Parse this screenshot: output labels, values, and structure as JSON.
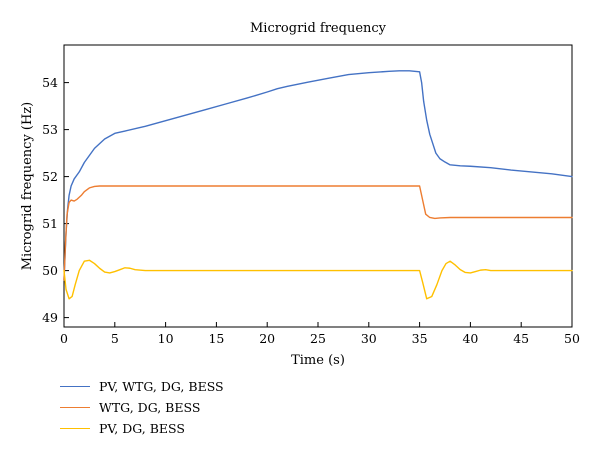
{
  "chart_data": {
    "type": "line",
    "title": "Microgrid frequency",
    "xlabel": "Time (s)",
    "ylabel": "Microgrid frequency (Hz)",
    "xlim": [
      0,
      50
    ],
    "ylim": [
      48.8,
      54.8
    ],
    "xticks": [
      0,
      5,
      10,
      15,
      20,
      25,
      30,
      35,
      40,
      45,
      50
    ],
    "yticks": [
      49,
      50,
      51,
      52,
      53,
      54
    ],
    "grid": false,
    "legend_position": "below-left",
    "series": [
      {
        "name": "PV, WTG, DG, BESS",
        "color": "#4472C4",
        "x": [
          0,
          0.1,
          0.2,
          0.35,
          0.5,
          0.7,
          1,
          1.5,
          2,
          3,
          4,
          5,
          6,
          8,
          10,
          12,
          14,
          16,
          18,
          20,
          21,
          22,
          24,
          26,
          28,
          30,
          32,
          33,
          34,
          35,
          35.2,
          35.4,
          35.7,
          36,
          36.3,
          36.6,
          37,
          37.5,
          38,
          39,
          40,
          42,
          44,
          46,
          48,
          50
        ],
        "y": [
          49.8,
          50.3,
          50.8,
          51.3,
          51.6,
          51.8,
          51.95,
          52.1,
          52.3,
          52.6,
          52.8,
          52.92,
          52.97,
          53.07,
          53.19,
          53.31,
          53.43,
          53.55,
          53.67,
          53.8,
          53.87,
          53.92,
          54.01,
          54.09,
          54.17,
          54.21,
          54.24,
          54.25,
          54.25,
          54.23,
          54.0,
          53.6,
          53.2,
          52.9,
          52.7,
          52.5,
          52.38,
          52.31,
          52.25,
          52.23,
          52.22,
          52.19,
          52.14,
          52.1,
          52.06,
          52.0
        ]
      },
      {
        "name": "WTG, DG, BESS",
        "color": "#ED7D31",
        "x": [
          0,
          0.15,
          0.3,
          0.5,
          0.7,
          1,
          1.3,
          1.7,
          2,
          2.5,
          3,
          3.5,
          4,
          5,
          10,
          15,
          20,
          25,
          30,
          34,
          35,
          35.3,
          35.6,
          36,
          36.5,
          37,
          38,
          40,
          45,
          50
        ],
        "y": [
          49.8,
          50.6,
          51.2,
          51.45,
          51.5,
          51.48,
          51.52,
          51.6,
          51.68,
          51.76,
          51.79,
          51.8,
          51.8,
          51.8,
          51.8,
          51.8,
          51.8,
          51.8,
          51.8,
          51.8,
          51.8,
          51.5,
          51.2,
          51.13,
          51.11,
          51.12,
          51.13,
          51.13,
          51.13,
          51.13
        ]
      },
      {
        "name": "PV, DG, BESS",
        "color": "#FFC000",
        "x": [
          0,
          0.2,
          0.5,
          0.8,
          1.1,
          1.5,
          2.0,
          2.5,
          3.0,
          3.5,
          4.0,
          4.5,
          5.0,
          5.5,
          6.0,
          6.5,
          7.0,
          8.0,
          9.0,
          10,
          15,
          20,
          25,
          30,
          35,
          35.3,
          35.7,
          36.2,
          36.7,
          37.2,
          37.6,
          38.0,
          38.5,
          39.0,
          39.5,
          40.0,
          40.5,
          41.0,
          41.5,
          42.0,
          43.0,
          45,
          50
        ],
        "y": [
          50.0,
          49.6,
          49.4,
          49.45,
          49.7,
          50.0,
          50.2,
          50.22,
          50.15,
          50.05,
          49.97,
          49.95,
          49.98,
          50.02,
          50.06,
          50.05,
          50.02,
          50.0,
          50.0,
          50.0,
          50.0,
          50.0,
          50.0,
          50.0,
          50.0,
          49.75,
          49.4,
          49.45,
          49.7,
          50.0,
          50.15,
          50.2,
          50.12,
          50.02,
          49.96,
          49.95,
          49.98,
          50.01,
          50.02,
          50.0,
          50.0,
          50.0,
          50.0
        ]
      }
    ]
  }
}
